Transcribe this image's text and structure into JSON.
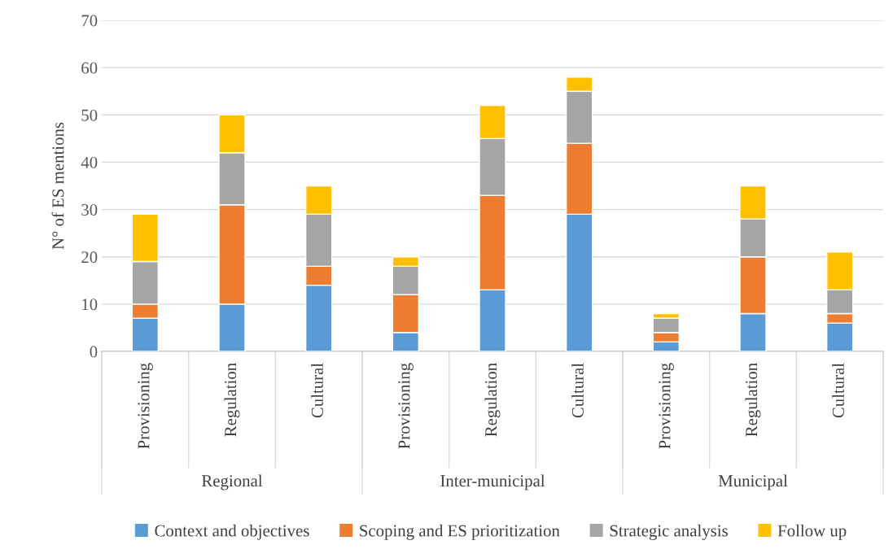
{
  "chart_data": {
    "type": "bar",
    "stacked": true,
    "ylabel": "N° of ES mentions",
    "categories": [
      "Provisioning",
      "Regulation",
      "Cultural",
      "Provisioning",
      "Regulation",
      "Cultural",
      "Provisioning",
      "Regulation",
      "Cultural"
    ],
    "annotations": [
      "Regional",
      "Inter-municipal",
      "Municipal"
    ],
    "series": [
      {
        "name": "Context and objectives",
        "color": "#5b9bd5",
        "values": [
          7,
          10,
          14,
          4,
          13,
          29,
          2,
          8,
          6
        ]
      },
      {
        "name": "Scoping and ES prioritization",
        "color": "#ed7d31",
        "values": [
          3,
          21,
          4,
          8,
          20,
          15,
          2,
          12,
          2
        ]
      },
      {
        "name": "Strategic analysis",
        "color": "#a5a5a5",
        "values": [
          9,
          11,
          11,
          6,
          12,
          11,
          3,
          8,
          5
        ]
      },
      {
        "name": "Follow up",
        "color": "#ffc000",
        "values": [
          10,
          8,
          6,
          2,
          7,
          3,
          1,
          7,
          8
        ]
      }
    ],
    "ylim": [
      0,
      70
    ],
    "yticks": [
      0,
      10,
      20,
      30,
      40,
      50,
      60,
      70
    ],
    "grid": "y",
    "legend": "bottom"
  }
}
